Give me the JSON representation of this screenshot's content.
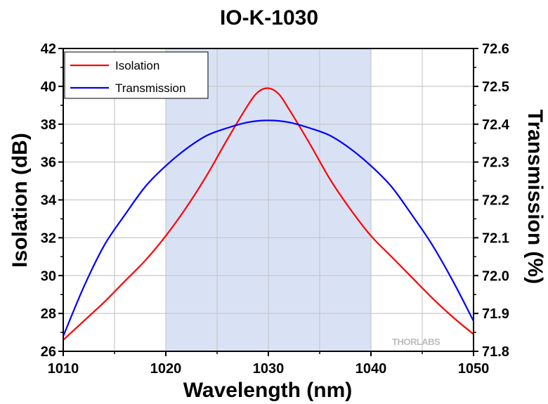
{
  "chart_data": {
    "type": "line",
    "title": "IO-K-1030",
    "xlabel": "Wavelength (nm)",
    "ylabel_left": "Isolation (dB)",
    "ylabel_right": "Transmission (%)",
    "xlim": [
      1010,
      1050
    ],
    "ylim_left": [
      26,
      42
    ],
    "ylim_right": [
      71.8,
      72.6
    ],
    "xticks": [
      "1010",
      "1020",
      "1030",
      "1040",
      "1050"
    ],
    "yticks_left": [
      "26",
      "28",
      "30",
      "32",
      "34",
      "36",
      "38",
      "40",
      "42"
    ],
    "yticks_right": [
      "71.8",
      "71.9",
      "72.0",
      "72.1",
      "72.2",
      "72.3",
      "72.4",
      "72.5",
      "72.6"
    ],
    "shaded_region": [
      1020,
      1040
    ],
    "grid": true,
    "legend_position": "top-left",
    "watermark": "THORLABS",
    "series": [
      {
        "name": "Isolation",
        "axis": "left",
        "color": "#ff0000",
        "x": [
          1010,
          1012,
          1014,
          1016,
          1018,
          1020,
          1022,
          1024,
          1026,
          1028,
          1029,
          1030,
          1031,
          1032,
          1034,
          1036,
          1038,
          1040,
          1042,
          1044,
          1046,
          1048,
          1050
        ],
        "values": [
          26.6,
          27.6,
          28.6,
          29.7,
          30.8,
          32.1,
          33.6,
          35.3,
          37.2,
          39.0,
          39.7,
          39.9,
          39.6,
          38.8,
          37.0,
          35.1,
          33.5,
          32.1,
          31.0,
          29.9,
          28.8,
          27.8,
          26.9
        ]
      },
      {
        "name": "Transmission",
        "axis": "right",
        "color": "#0000ff",
        "x": [
          1010,
          1012,
          1014,
          1016,
          1018,
          1020,
          1022,
          1024,
          1026,
          1028,
          1030,
          1032,
          1034,
          1036,
          1038,
          1040,
          1042,
          1044,
          1046,
          1048,
          1050
        ],
        "values": [
          71.84,
          71.97,
          72.08,
          72.16,
          72.235,
          72.29,
          72.335,
          72.37,
          72.39,
          72.405,
          72.41,
          72.405,
          72.39,
          72.37,
          72.335,
          72.29,
          72.235,
          72.16,
          72.08,
          71.985,
          71.88
        ]
      }
    ]
  }
}
